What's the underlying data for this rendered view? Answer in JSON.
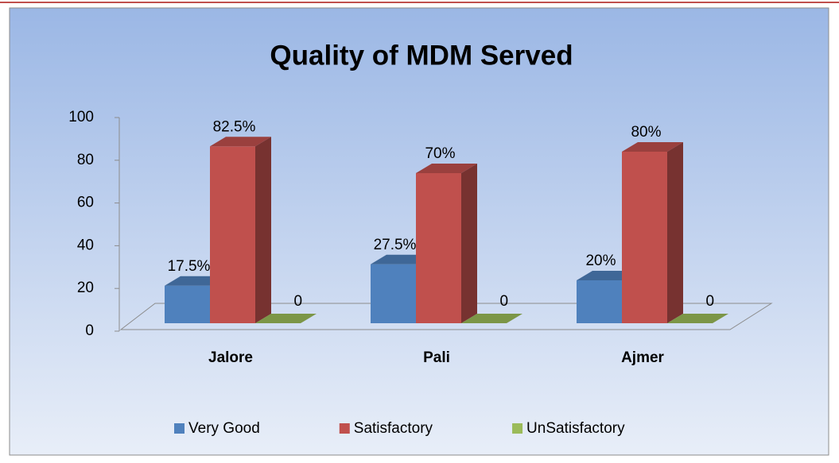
{
  "chart_data": {
    "type": "bar3d",
    "title": "Quality of MDM Served",
    "categories": [
      "Jalore",
      "Pali",
      "Ajmer"
    ],
    "series": [
      {
        "name": "Very Good",
        "color": "#4f81bd",
        "values": [
          17.5,
          27.5,
          20
        ],
        "value_labels": [
          "17.5%",
          "27.5%",
          "20%"
        ]
      },
      {
        "name": "Satisfactory",
        "color": "#c0504d",
        "values": [
          82.5,
          70,
          80
        ],
        "value_labels": [
          "82.5%",
          "70%",
          "80%"
        ]
      },
      {
        "name": "UnSatisfactory",
        "color": "#9bbb59",
        "values": [
          0,
          0,
          0
        ]
      }
    ],
    "ylim": [
      0,
      100
    ],
    "yticks": [
      0,
      20,
      40,
      60,
      80,
      100
    ],
    "grid": false,
    "legend": "bottom"
  }
}
